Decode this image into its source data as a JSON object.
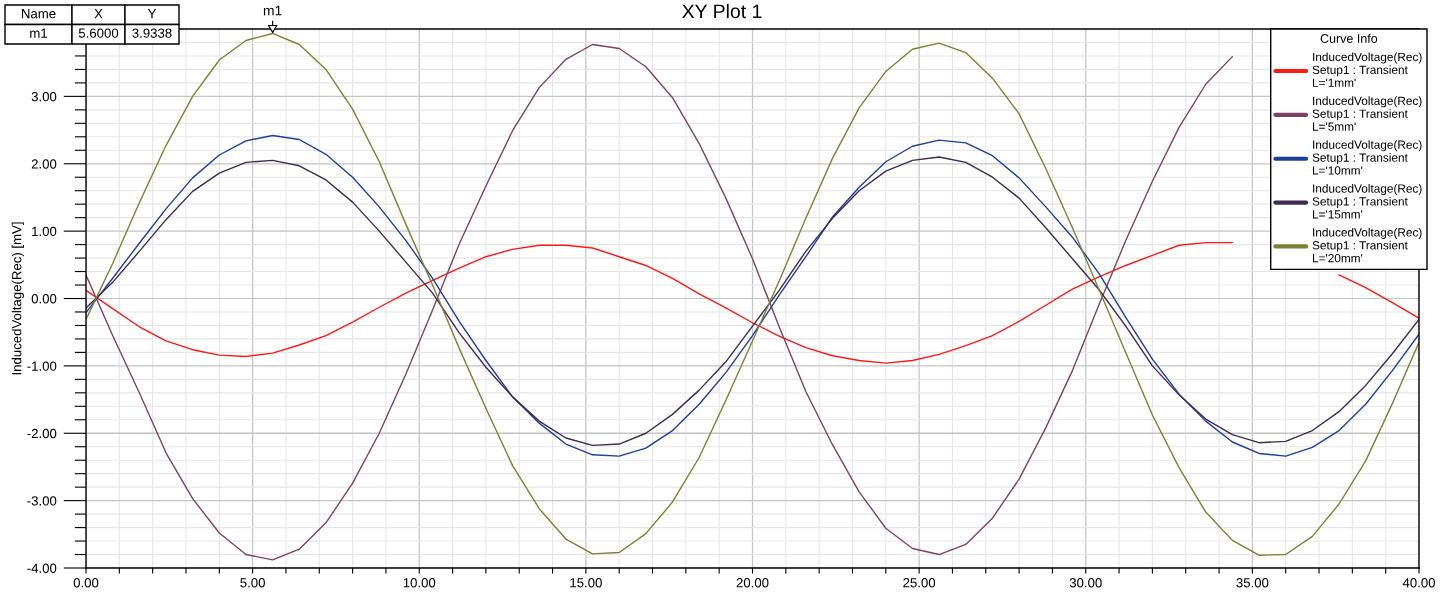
{
  "chart_data": {
    "type": "line",
    "title": "XY Plot 1",
    "ylabel": "InducedVoltage(Rec) [mV]",
    "legend_title": "Curve Info",
    "x": [
      0,
      0.8,
      1.6,
      2.4,
      3.2,
      4,
      4.8,
      5.6,
      6.4,
      7.2,
      8,
      8.8,
      9.6,
      10.4,
      11.2,
      12,
      12.8,
      13.6,
      14.4,
      15.2,
      16,
      16.8,
      17.6,
      18.4,
      19.2,
      20,
      20.8,
      21.6,
      22.4,
      23.2,
      24,
      24.8,
      25.6,
      26.4,
      27.2,
      28,
      28.8,
      29.6,
      30.4,
      31.2,
      32,
      32.8,
      33.6,
      34.4,
      35.2,
      36,
      36.8,
      37.6,
      38.4,
      39.2,
      40
    ],
    "series": [
      {
        "name": "InducedVoltage(Rec)\nSetup1 : Transient\nL='1mm'",
        "color": "#ff1a1a",
        "values": [
          0.12,
          -0.15,
          -0.42,
          -0.63,
          -0.76,
          -0.84,
          -0.86,
          -0.81,
          -0.69,
          -0.55,
          -0.35,
          -0.13,
          0.08,
          0.27,
          0.45,
          0.62,
          0.73,
          0.79,
          0.79,
          0.75,
          0.62,
          0.49,
          0.3,
          0.07,
          -0.14,
          -0.36,
          -0.56,
          -0.73,
          -0.85,
          -0.92,
          -0.96,
          -0.92,
          -0.83,
          -0.7,
          -0.55,
          -0.34,
          -0.1,
          0.14,
          0.32,
          0.49,
          0.64,
          0.79,
          0.83,
          0.83,
          null,
          null,
          null,
          0.35,
          0.16,
          -0.06,
          -0.29
        ]
      },
      {
        "name": "InducedVoltage(Rec)\nSetup1 : Transient\nL='5mm'",
        "color": "#7d4266",
        "values": [
          0.35,
          -0.55,
          -1.4,
          -2.29,
          -2.97,
          -3.48,
          -3.8,
          -3.88,
          -3.72,
          -3.33,
          -2.74,
          -2.0,
          -1.12,
          -0.17,
          0.81,
          1.67,
          2.49,
          3.13,
          3.55,
          3.77,
          3.71,
          3.44,
          2.98,
          2.3,
          1.49,
          0.59,
          -0.42,
          -1.38,
          -2.17,
          -2.87,
          -3.41,
          -3.71,
          -3.8,
          -3.65,
          -3.26,
          -2.68,
          -1.92,
          -1.07,
          -0.09,
          0.86,
          1.74,
          2.54,
          3.18,
          3.59,
          null,
          null,
          null,
          null,
          null,
          null,
          null
        ]
      },
      {
        "name": "InducedVoltage(Rec)\nSetup1 : Transient\nL='10mm'",
        "color": "#1c3f9c",
        "values": [
          -0.21,
          0.3,
          0.82,
          1.33,
          1.79,
          2.13,
          2.34,
          2.42,
          2.36,
          2.14,
          1.8,
          1.36,
          0.86,
          0.3,
          -0.34,
          -0.92,
          -1.46,
          -1.85,
          -2.16,
          -2.32,
          -2.34,
          -2.22,
          -1.96,
          -1.57,
          -1.1,
          -0.55,
          0.05,
          0.62,
          1.21,
          1.65,
          2.03,
          2.26,
          2.35,
          2.31,
          2.12,
          1.79,
          1.36,
          0.91,
          0.37,
          -0.28,
          -0.9,
          -1.42,
          -1.82,
          -2.13,
          -2.3,
          -2.34,
          -2.21,
          -1.96,
          -1.57,
          -1.07,
          -0.53
        ]
      },
      {
        "name": "InducedVoltage(Rec)\nSetup1 : Transient\nL='15mm'",
        "color": "#3e2a52",
        "values": [
          -0.14,
          0.24,
          0.7,
          1.17,
          1.59,
          1.86,
          2.02,
          2.05,
          1.97,
          1.76,
          1.43,
          1.0,
          0.54,
          0.08,
          -0.51,
          -1.02,
          -1.46,
          -1.82,
          -2.07,
          -2.18,
          -2.16,
          -2.0,
          -1.72,
          -1.36,
          -0.94,
          -0.41,
          0.12,
          0.7,
          1.19,
          1.6,
          1.89,
          2.05,
          2.1,
          2.02,
          1.8,
          1.49,
          1.05,
          0.59,
          0.13,
          -0.41,
          -1.0,
          -1.43,
          -1.79,
          -2.02,
          -2.14,
          -2.12,
          -1.96,
          -1.68,
          -1.29,
          -0.82,
          -0.31
        ]
      },
      {
        "name": "InducedVoltage(Rec)\nSetup1 : Transient\nL='20mm'",
        "color": "#7f7f38",
        "values": [
          -0.31,
          0.52,
          1.42,
          2.27,
          3.0,
          3.54,
          3.83,
          3.9338,
          3.77,
          3.4,
          2.81,
          2.03,
          1.1,
          0.2,
          -0.74,
          -1.63,
          -2.48,
          -3.12,
          -3.57,
          -3.79,
          -3.77,
          -3.49,
          -3.02,
          -2.36,
          -1.51,
          -0.63,
          0.26,
          1.19,
          2.08,
          2.83,
          3.37,
          3.7,
          3.79,
          3.65,
          3.27,
          2.74,
          1.93,
          1.05,
          0.13,
          -0.8,
          -1.73,
          -2.51,
          -3.17,
          -3.59,
          -3.81,
          -3.8,
          -3.53,
          -3.05,
          -2.41,
          -1.56,
          -0.65
        ]
      }
    ],
    "xlim": [
      0,
      40
    ],
    "ylim": [
      -4,
      4
    ],
    "xticks": [
      {
        "value": 0,
        "label": "0.00"
      },
      {
        "value": 5,
        "label": "5.00"
      },
      {
        "value": 10,
        "label": "10.00"
      },
      {
        "value": 15,
        "label": "15.00"
      },
      {
        "value": 20,
        "label": "20.00"
      },
      {
        "value": 25,
        "label": "25.00"
      },
      {
        "value": 30,
        "label": "30.00"
      },
      {
        "value": 35,
        "label": "35.00"
      },
      {
        "value": 40,
        "label": "40.00"
      }
    ],
    "yticks": [
      {
        "value": -4,
        "label": "-4.00"
      },
      {
        "value": -3,
        "label": "-3.00"
      },
      {
        "value": -2,
        "label": "-2.00"
      },
      {
        "value": -1,
        "label": "-1.00"
      },
      {
        "value": 0,
        "label": "0.00"
      },
      {
        "value": 1,
        "label": "1.00"
      },
      {
        "value": 2,
        "label": "2.00"
      },
      {
        "value": 3,
        "label": "3.00"
      }
    ],
    "grid": true,
    "legend": "top right",
    "annotations": [
      {
        "text": "m1",
        "x": 5.6,
        "y": 3.9338
      },
      "Name",
      "X",
      "Y",
      "m1",
      "5.6000",
      "3.9338"
    ]
  }
}
